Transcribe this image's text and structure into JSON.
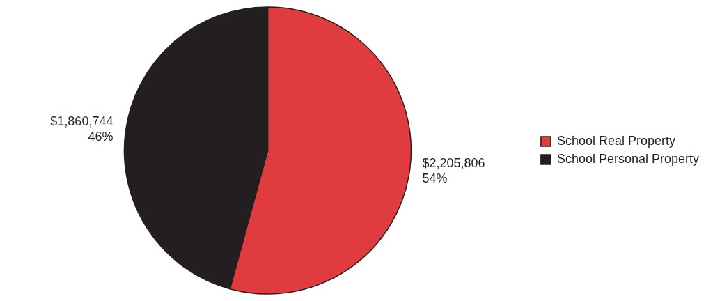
{
  "chart_data": {
    "type": "pie",
    "categories": [
      "School Real Property",
      "School Personal Property"
    ],
    "values": [
      2205806,
      1860744
    ],
    "colors": [
      "#e03c40",
      "#231f20"
    ],
    "value_labels": [
      "$2,205,806\n54%",
      "$1,860,744\n46%"
    ],
    "legend": "right"
  }
}
